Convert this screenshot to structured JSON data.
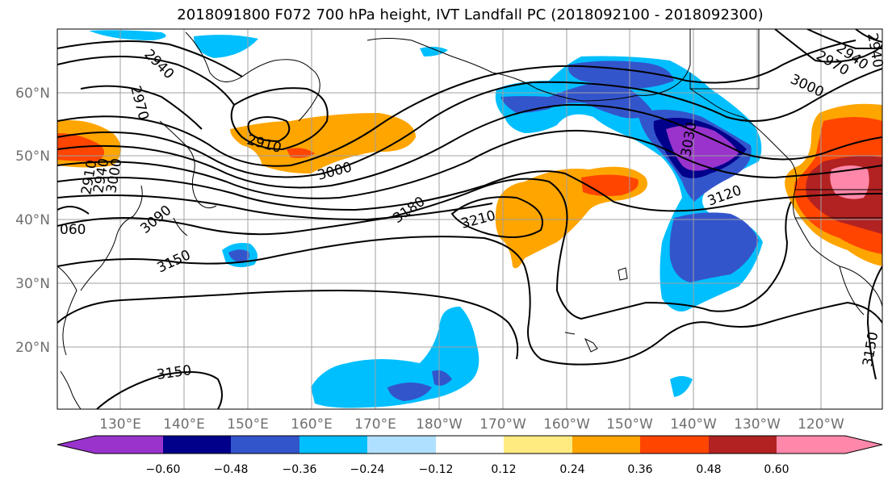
{
  "title": "2018091800 F072 700 hPa height, IVT Landfall PC (2018092100 - 2018092300)",
  "map": {
    "lat_labels": [
      "60°N",
      "50°N",
      "40°N",
      "30°N",
      "20°N"
    ],
    "lon_labels": [
      "130°E",
      "140°E",
      "150°E",
      "160°E",
      "170°E",
      "180°W",
      "170°W",
      "160°W",
      "150°W",
      "140°W",
      "130°W",
      "120°W"
    ]
  },
  "contour_labels": [
    "2940",
    "2970",
    "2910",
    "3000",
    "3090",
    "3150",
    "3180",
    "3210",
    "3030",
    "3120",
    "3000",
    "2970",
    "2940",
    "3150",
    "3150",
    "2910",
    "2940",
    "3000",
    "2940",
    "060"
  ],
  "colorbar": {
    "ticks": [
      "−0.60",
      "−0.48",
      "−0.36",
      "−0.24",
      "−0.12",
      "0.12",
      "0.24",
      "0.36",
      "0.48",
      "0.60"
    ],
    "colors": [
      "#9933cc",
      "#00008b",
      "#3355cc",
      "#00bfff",
      "#b0e0ff",
      "#ffffff",
      "#ffeb80",
      "#ffa500",
      "#ff4500",
      "#b22222",
      "#ff88aa"
    ]
  }
}
